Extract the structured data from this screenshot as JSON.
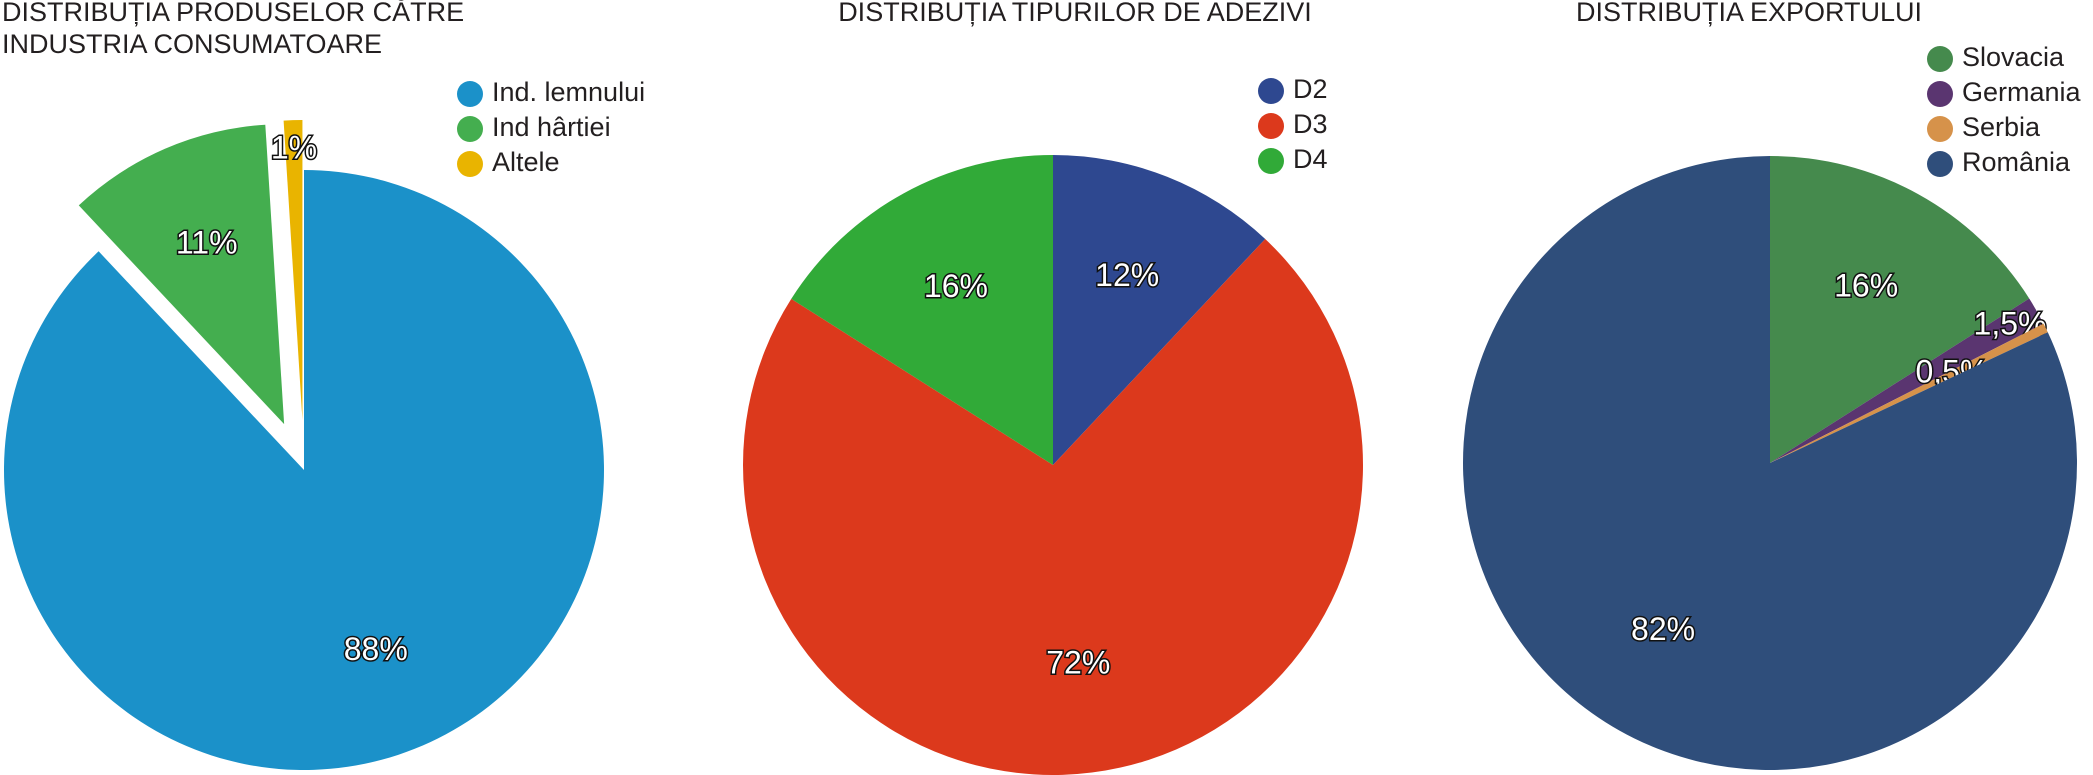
{
  "chart_data": [
    {
      "type": "pie",
      "title": "DISTRIBUȚIA PRODUSELOR CĂTRE\nINDUSTRIA CONSUMATOARE",
      "categories": [
        "Ind. lemnului",
        "Ind hârtiei",
        "Altele"
      ],
      "values": [
        88,
        11,
        1
      ],
      "value_labels": [
        "88%",
        "11%",
        "1%"
      ],
      "colors": [
        "#1b91c9",
        "#44ae4f",
        "#e9b400"
      ],
      "explode": [
        false,
        true,
        true
      ]
    },
    {
      "type": "pie",
      "title": "DISTRIBUȚIA TIPURILOR DE ADEZIVI",
      "categories": [
        "D2",
        "D3",
        "D4"
      ],
      "values": [
        12,
        72,
        16
      ],
      "value_labels": [
        "12%",
        "72%",
        "16%"
      ],
      "colors": [
        "#2e4890",
        "#dc391c",
        "#31aa38"
      ],
      "explode": [
        false,
        false,
        false
      ]
    },
    {
      "type": "pie",
      "title": "DISTRIBUȚIA EXPORTULUI",
      "categories": [
        "Slovacia",
        "Germania",
        "Serbia",
        "România"
      ],
      "values": [
        16,
        1.5,
        0.5,
        82
      ],
      "value_labels": [
        "16%",
        "1,5%",
        "0,5%",
        "82%"
      ],
      "colors": [
        "#458a4d",
        "#5a3570",
        "#d6924a",
        "#2f4e7b"
      ],
      "explode": [
        false,
        false,
        false,
        false
      ]
    }
  ]
}
